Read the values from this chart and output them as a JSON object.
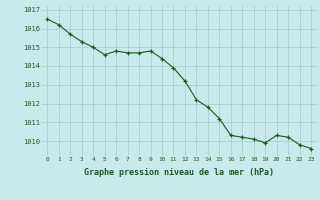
{
  "x": [
    0,
    1,
    2,
    3,
    4,
    5,
    6,
    7,
    8,
    9,
    10,
    11,
    12,
    13,
    14,
    15,
    16,
    17,
    18,
    19,
    20,
    21,
    22,
    23
  ],
  "y": [
    1016.5,
    1016.2,
    1015.7,
    1015.3,
    1015.0,
    1014.6,
    1014.8,
    1014.7,
    1014.7,
    1014.8,
    1014.4,
    1013.9,
    1013.2,
    1012.2,
    1011.8,
    1011.2,
    1010.3,
    1010.2,
    1010.1,
    1009.9,
    1010.3,
    1010.2,
    1009.8,
    1009.6
  ],
  "line_color": "#1a5c1a",
  "marker_color": "#1a5c1a",
  "bg_color": "#c8eaea",
  "grid_color": "#a8c8c8",
  "xlabel": "Graphe pression niveau de la mer (hPa)",
  "xlabel_color": "#1a5c1a",
  "tick_color": "#1a5c1a",
  "ylim": [
    1009.2,
    1017.2
  ],
  "yticks": [
    1010,
    1011,
    1012,
    1013,
    1014,
    1015,
    1016,
    1017
  ],
  "xticks": [
    0,
    1,
    2,
    3,
    4,
    5,
    6,
    7,
    8,
    9,
    10,
    11,
    12,
    13,
    14,
    15,
    16,
    17,
    18,
    19,
    20,
    21,
    22,
    23
  ]
}
